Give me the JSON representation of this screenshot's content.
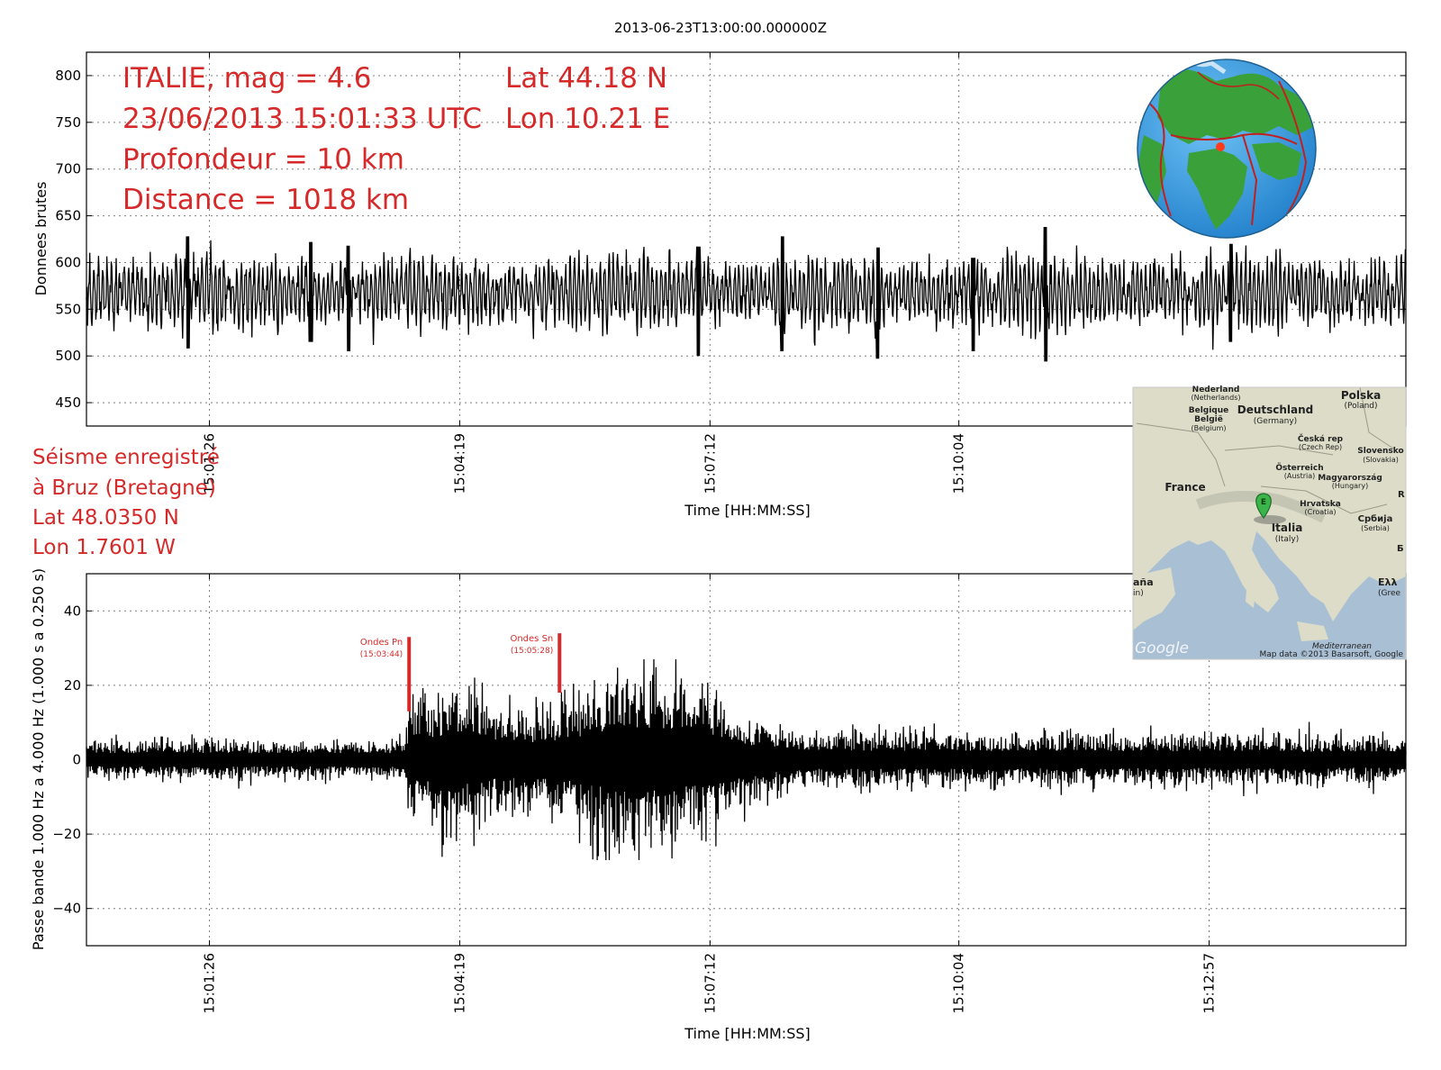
{
  "figure_title": "2013-06-23T13:00:00.000000Z",
  "event_info": {
    "line1": "ITALIE, mag = 4.6",
    "line2": "23/06/2013 15:01:33 UTC",
    "line3": "Profondeur = 10 km",
    "line4": "Distance = 1018 km",
    "lat": "Lat 44.18 N",
    "lon": "Lon 10.21 E"
  },
  "station_info": {
    "line1": "Séisme enregistré",
    "line2": "à Bruz (Bretagne)",
    "line3": "Lat 48.0350 N",
    "line4": "Lon 1.7601 W"
  },
  "map_labels": {
    "nederland": "Nederland",
    "netherlands": "(Netherlands)",
    "belgique": "Belgique",
    "belgie": "België",
    "belgium": "(Belgium)",
    "deutschland": "Deutschland",
    "germany": "(Germany)",
    "polska": "Polska",
    "poland": "(Poland)",
    "cesko": "Česká rep",
    "czech": "(Czech Rep)",
    "slovensko": "Slovensko",
    "slovakia": "(Slovakia)",
    "osterreich": "Österreich",
    "austria": "(Austria)",
    "magyar": "Magyarország",
    "hungary": "(Hungary)",
    "france": "France",
    "hrvatska": "Hrvatska",
    "croatia": "(Croatia)",
    "srbija": "Србија",
    "serbia": "(Serbia)",
    "italia": "Italia",
    "italy": "(Italy)",
    "espana": "aña",
    "spain": "in)",
    "greece1": "Ελλ",
    "greece2": "(Gree",
    "mediterranean": "Mediterranean",
    "google": "Google",
    "copyright": "Map data ©2013 Basarsoft, Google",
    "marker": "E",
    "edge_r": "R",
    "edge_b": "Б"
  },
  "colors": {
    "annotation": "#d62a2a",
    "trace": "#000000",
    "ocean": "#a9bfd3",
    "land": "#dcdcc8",
    "globe_ocean": "#3c9ee0",
    "globe_land": "#3aa03a",
    "plate_boundary": "#c0201e"
  },
  "chart_data": [
    {
      "type": "line",
      "name": "raw",
      "ylabel": "Donnees brutes",
      "xlabel": "Time [HH:MM:SS]",
      "ylim": [
        425,
        825
      ],
      "yticks": [
        450,
        500,
        550,
        600,
        650,
        700,
        750,
        800
      ],
      "x_range": [
        "15:00:01",
        "15:15:13"
      ],
      "xticks": [
        "15:01:26",
        "15:04:19",
        "15:07:12",
        "15:10:04"
      ],
      "grid": true,
      "baseline": 568,
      "noise_amplitude_approx": 45,
      "peaks": [
        {
          "time": "15:01:11",
          "max": 628,
          "min": 508
        },
        {
          "time": "15:02:36",
          "max": 622,
          "min": 515
        },
        {
          "time": "15:03:02",
          "max": 618,
          "min": 505
        },
        {
          "time": "15:07:04",
          "max": 617,
          "min": 500
        },
        {
          "time": "15:08:02",
          "max": 628,
          "min": 505
        },
        {
          "time": "15:09:08",
          "max": 616,
          "min": 497
        },
        {
          "time": "15:10:14",
          "max": 605,
          "min": 505
        },
        {
          "time": "15:11:04",
          "max": 638,
          "min": 494
        },
        {
          "time": "15:13:12",
          "max": 620,
          "min": 515
        }
      ]
    },
    {
      "type": "line",
      "name": "filtered",
      "ylabel": "Passe bande 1.000 Hz a 4.000 Hz (1.000 s a 0.250 s)",
      "xlabel": "Time [HH:MM:SS]",
      "ylim": [
        -50,
        50
      ],
      "yticks": [
        -40,
        -20,
        0,
        20,
        40
      ],
      "ytick_labels": [
        "−40",
        "−20",
        "0",
        "20",
        "40"
      ],
      "x_range": [
        "15:00:01",
        "15:15:13"
      ],
      "xticks": [
        "15:01:26",
        "15:04:19",
        "15:07:12",
        "15:10:04",
        "15:12:57"
      ],
      "grid": true,
      "envelope": [
        {
          "time": "15:00:01",
          "amp": 5
        },
        {
          "time": "15:03:40",
          "amp": 5
        },
        {
          "time": "15:03:44",
          "amp": 14
        },
        {
          "time": "15:04:10",
          "amp": 19
        },
        {
          "time": "15:05:00",
          "amp": 12
        },
        {
          "time": "15:05:28",
          "amp": 15
        },
        {
          "time": "15:06:15",
          "amp": 24
        },
        {
          "time": "15:06:50",
          "amp": 22
        },
        {
          "time": "15:07:30",
          "amp": 12
        },
        {
          "time": "15:08:20",
          "amp": 7
        },
        {
          "time": "15:15:13",
          "amp": 6
        }
      ],
      "annotations": [
        {
          "label": "Ondes Pn",
          "time_label": "(15:03:44)",
          "time": "15:03:44",
          "y_from": 13,
          "y_to": 33
        },
        {
          "label": "Ondes Sn",
          "time_label": "(15:05:28)",
          "time": "15:05:28",
          "y_from": 18,
          "y_to": 34
        }
      ]
    }
  ]
}
